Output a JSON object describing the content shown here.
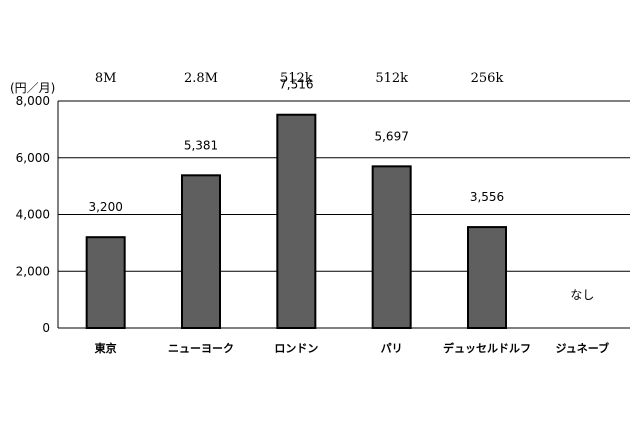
{
  "chart_data": {
    "type": "bar",
    "ylabel": "(円／月)",
    "ylim": [
      0,
      8000
    ],
    "yticks": [
      0,
      2000,
      4000,
      6000,
      8000
    ],
    "ytick_labels": [
      "0",
      "2,000",
      "4,000",
      "6,000",
      "8,000"
    ],
    "grid": true,
    "categories": [
      "東京",
      "ニューヨーク",
      "ロンドン",
      "パリ",
      "デュッセルドルフ",
      "ジュネーブ"
    ],
    "top_labels": [
      "8M",
      "2.8M",
      "512k",
      "512k",
      "256k",
      ""
    ],
    "values": [
      3200,
      5381,
      7516,
      5697,
      3556,
      null
    ],
    "value_labels": [
      "3,200",
      "5,381",
      "7,516",
      "5,697",
      "3,556",
      "なし"
    ],
    "bar_color": "#5f5f5f"
  }
}
